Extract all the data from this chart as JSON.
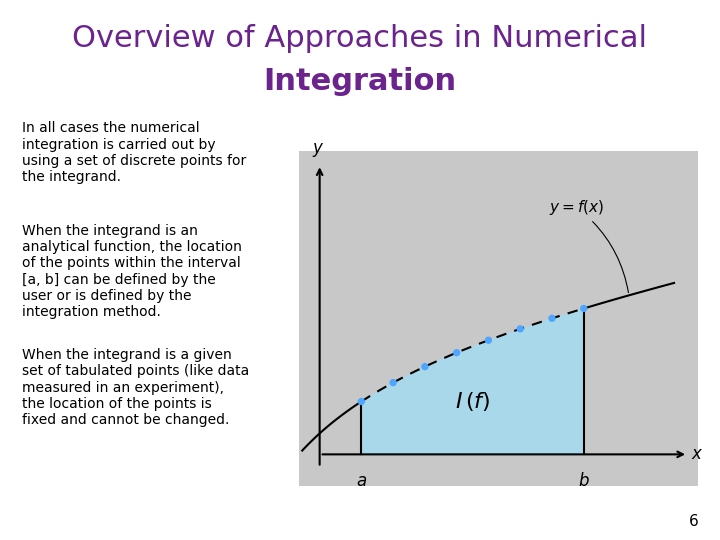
{
  "title_line1": "Overview of Approaches in Numerical",
  "title_line2": "Integration",
  "title_color": "#6B238E",
  "title_fontsize": 22,
  "background_color": "#ffffff",
  "bullet1": "In all cases the numerical\nintegration is carried out by\nusing a set of discrete points for\nthe integrand.",
  "bullet2": "When the integrand is an\nanalytical function, the location\nof the points within the interval\n[a, b] can be defined by the\nuser or is defined by the\nintegration method.",
  "bullet3": "When the integrand is a given\nset of tabulated points (like data\nmeasured in an experiment),\nthe location of the points is\nfixed and cannot be changed.",
  "text_fontsize": 10,
  "page_number": "6",
  "plot_bg_color": "#c8c8c8",
  "fill_color": "#a8d8ea",
  "curve_color": "#000000",
  "point_color": "#4da6ff",
  "axes_color": "#000000"
}
